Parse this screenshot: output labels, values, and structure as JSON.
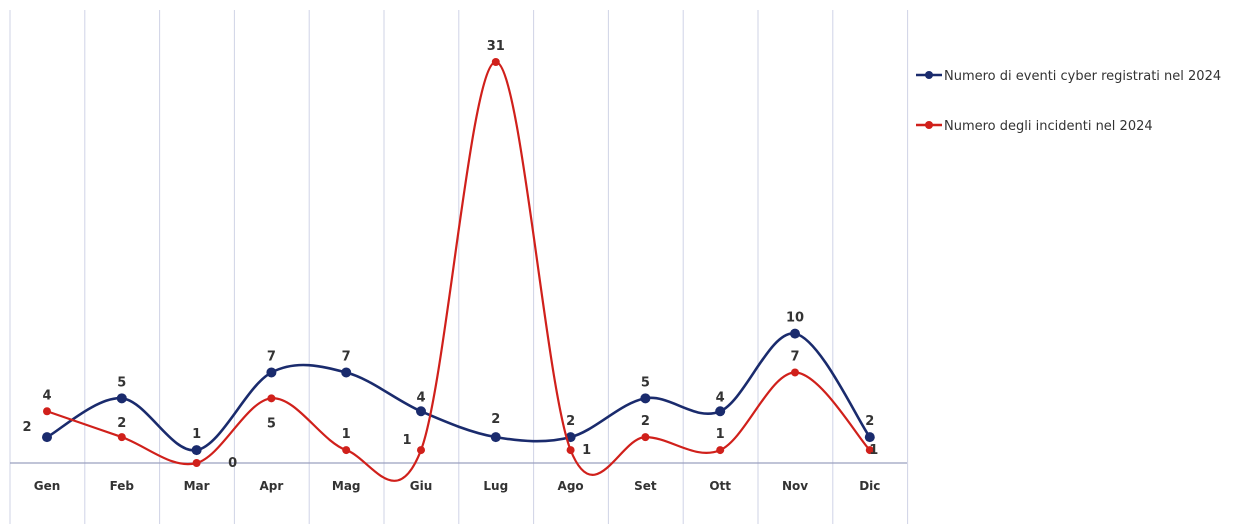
{
  "chart_data": {
    "type": "line",
    "smooth": true,
    "categories": [
      "Gen",
      "Feb",
      "Mar",
      "Apr",
      "Mag",
      "Giu",
      "Lug",
      "Ago",
      "Set",
      "Ott",
      "Nov",
      "Dic"
    ],
    "ylim": [
      0,
      31
    ],
    "grid": {
      "vertical": true,
      "horizontal": false
    },
    "legend_position": "top-right",
    "series": [
      {
        "name": "Numero di eventi cyber registrati nel 2024",
        "color": "#1a2b6d",
        "values": [
          2,
          5,
          1,
          7,
          7,
          4,
          2,
          2,
          5,
          4,
          10,
          2
        ]
      },
      {
        "name": "Numero degli incidenti nel 2024",
        "color": "#d0201b",
        "values": [
          4,
          2,
          0,
          5,
          1,
          1,
          31,
          1,
          2,
          1,
          7,
          1
        ]
      }
    ]
  }
}
